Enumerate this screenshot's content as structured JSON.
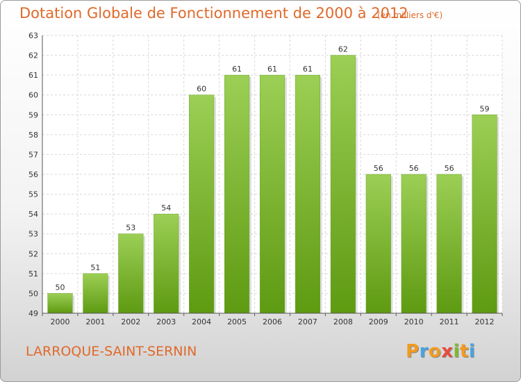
{
  "chart_data": {
    "type": "bar",
    "title": "Dotation Globale de Fonctionnement de 2000 à 2012",
    "subtitle": "(en milliers d'€)",
    "categories": [
      "2000",
      "2001",
      "2002",
      "2003",
      "2004",
      "2005",
      "2006",
      "2007",
      "2008",
      "2009",
      "2010",
      "2011",
      "2012"
    ],
    "values": [
      50,
      51,
      53,
      54,
      60,
      61,
      61,
      61,
      62,
      56,
      56,
      56,
      59
    ],
    "ylim": [
      49,
      63
    ],
    "yticks": [
      49,
      50,
      51,
      52,
      53,
      54,
      55,
      56,
      57,
      58,
      59,
      60,
      61,
      62,
      63
    ],
    "xlabel": "",
    "ylabel": "",
    "grid": true,
    "bar_color": "#7cbb2e"
  },
  "footer": {
    "commune": "LARROQUE-SAINT-SERNIN",
    "logo": [
      "P",
      "r",
      "o",
      "x",
      "i",
      "t",
      "i"
    ],
    "logo_colors": [
      "#f29a1e",
      "#4aa3df",
      "#f29a1e",
      "#e84c3d",
      "#7cbb2e",
      "#f29a1e",
      "#4aa3df"
    ]
  }
}
